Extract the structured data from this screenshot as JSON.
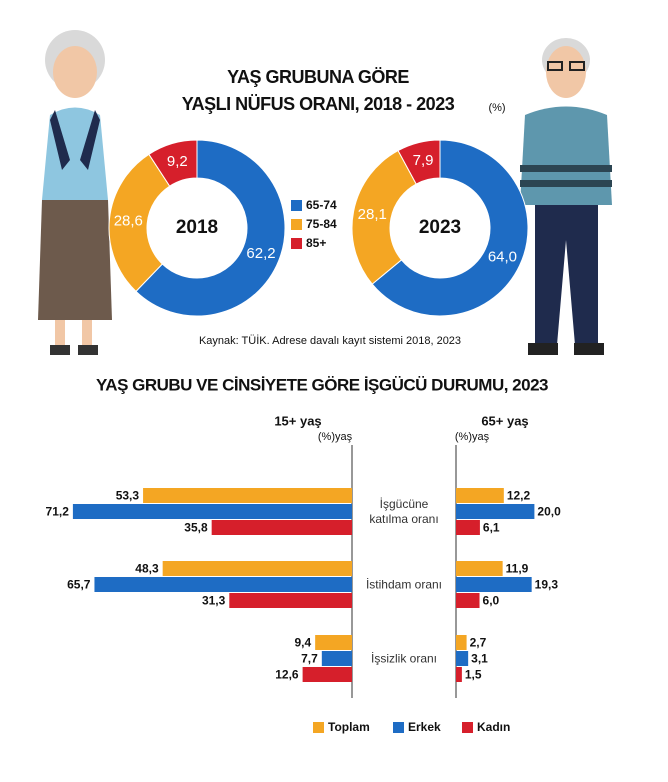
{
  "chart_data": [
    {
      "type": "pie",
      "title_lines": [
        "YAŞ GRUBUNA GÖRE",
        "YAŞLI NÜFUS ORANI, 2018 - 2023"
      ],
      "unit": "(%)",
      "source": "Kaynak: TÜİK. Adrese davalı kayıt sistemi 2018, 2023",
      "categories": [
        "65-74",
        "75-84",
        "85+"
      ],
      "colors": [
        "#1e6cc4",
        "#f4a623",
        "#d61f2b"
      ],
      "pies": [
        {
          "label": "2018",
          "values": [
            62.2,
            28.6,
            9.2
          ],
          "value_labels": [
            "62,2",
            "28,6",
            "9,2"
          ]
        },
        {
          "label": "2023",
          "values": [
            64.0,
            28.1,
            7.9
          ],
          "value_labels": [
            "64,0",
            "28,1",
            "7,9"
          ]
        }
      ]
    },
    {
      "type": "bar",
      "title": "YAŞ GRUBU VE CİNSİYETE GÖRE İŞGÜCÜ DURUMU, 2023",
      "groups": [
        "15+ yaş",
        "65+ yaş"
      ],
      "group_units": [
        "(%)yaş",
        "(%)yaş"
      ],
      "categories": [
        "İşgücüne katılma oranı",
        "İstihdam oranı",
        "İşsizlik oranı"
      ],
      "series": [
        {
          "name": "Toplam",
          "color": "#f4a623",
          "values": [
            [
              53.3,
              48.3,
              9.4
            ],
            [
              12.2,
              11.9,
              2.7
            ]
          ],
          "value_labels": [
            [
              "53,3",
              "48,3",
              "9,4"
            ],
            [
              "12,2",
              "11,9",
              "2,7"
            ]
          ]
        },
        {
          "name": "Erkek",
          "color": "#1e6cc4",
          "values": [
            [
              71.2,
              65.7,
              7.7
            ],
            [
              20.0,
              19.3,
              3.1
            ]
          ],
          "value_labels": [
            [
              "71,2",
              "65,7",
              "7,7"
            ],
            [
              "20,0",
              "19,3",
              "3,1"
            ]
          ]
        },
        {
          "name": "Kadın",
          "color": "#d61f2b",
          "values": [
            [
              35.8,
              31.3,
              12.6
            ],
            [
              6.1,
              6.0,
              1.5
            ]
          ],
          "value_labels": [
            [
              "35,8",
              "31,3",
              "12,6"
            ],
            [
              "6,1",
              "6,0",
              "1,5"
            ]
          ]
        }
      ]
    }
  ]
}
